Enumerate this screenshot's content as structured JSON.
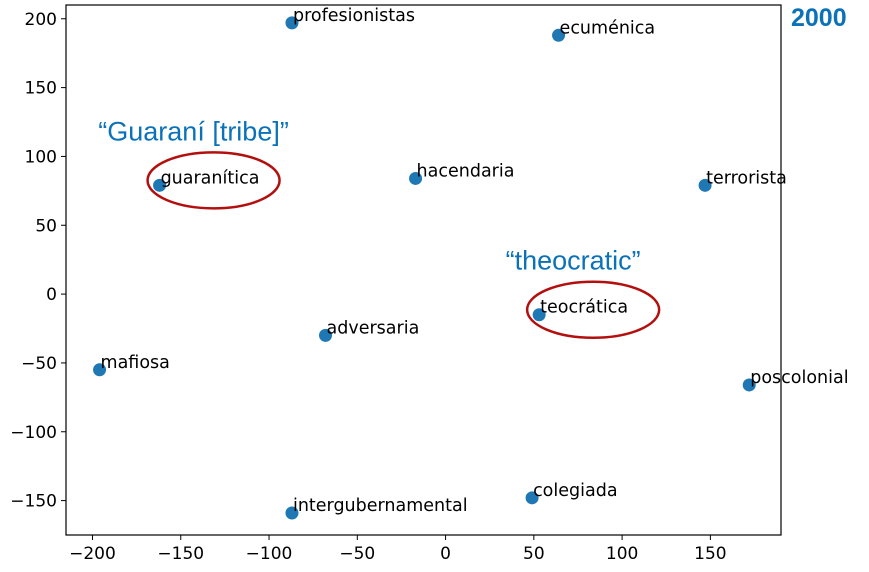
{
  "chart_data": {
    "type": "scatter",
    "title": "",
    "xlabel": "",
    "ylabel": "",
    "xlim": [
      -215,
      190
    ],
    "ylim": [
      -175,
      210
    ],
    "xticks": [
      -200,
      -150,
      -100,
      -50,
      0,
      50,
      100,
      150
    ],
    "yticks": [
      -150,
      -100,
      -50,
      0,
      50,
      100,
      150,
      200
    ],
    "grid": false,
    "marker_color": "#1f77b4",
    "points": [
      {
        "x": -87,
        "y": 197,
        "label": "profesionistas"
      },
      {
        "x": 64,
        "y": 188,
        "label": "ecuménica"
      },
      {
        "x": -162,
        "y": 79,
        "label": "guaranítica"
      },
      {
        "x": -17,
        "y": 84,
        "label": "hacendaria"
      },
      {
        "x": 147,
        "y": 79,
        "label": "terrorista"
      },
      {
        "x": 53,
        "y": -15,
        "label": "teocrática"
      },
      {
        "x": -68,
        "y": -30,
        "label": "adversaria"
      },
      {
        "x": -196,
        "y": -55,
        "label": "mafiosa"
      },
      {
        "x": 172,
        "y": -66,
        "label": "poscolonial"
      },
      {
        "x": 49,
        "y": -148,
        "label": "colegiada"
      },
      {
        "x": -87,
        "y": -159,
        "label": "intergubernamental"
      }
    ],
    "annotations": [
      {
        "text": "“Guaraní [tribe]”",
        "target": "guaranítica",
        "color": "#0b72b9",
        "circle_color": "#b30f0f"
      },
      {
        "text": "“theocratic”",
        "target": "teocrática",
        "color": "#0b72b9",
        "circle_color": "#b30f0f"
      }
    ],
    "corner_label": {
      "text": "2000",
      "color": "#0b72b9"
    }
  }
}
